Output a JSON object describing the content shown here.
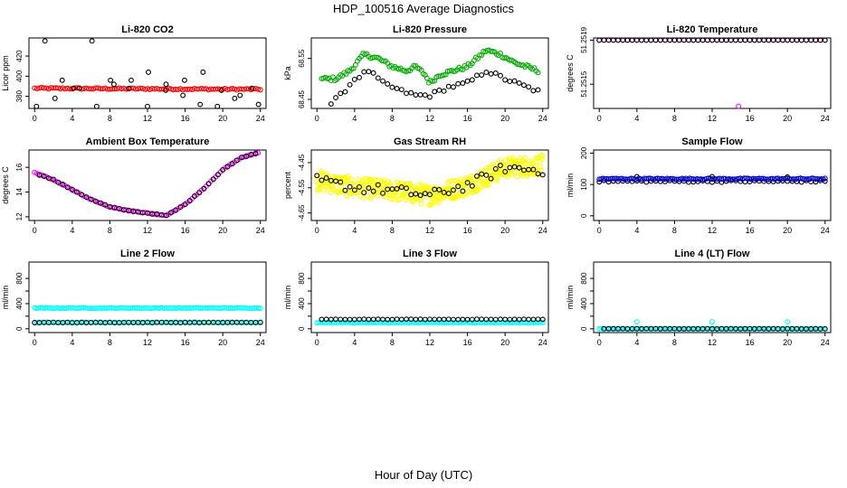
{
  "page": {
    "title": "HDP_100516  Average Diagnostics",
    "x_axis_label": "Hour of Day (UTC)"
  },
  "chart_data": [
    {
      "type": "scatter",
      "title": "Li-820 CO2",
      "ylabel": "Licor ppm",
      "ytick_labels": [
        "380",
        "400",
        "420"
      ],
      "yticks": [
        380,
        400,
        420
      ],
      "ylim": [
        368,
        438
      ],
      "xlim": [
        -0.6,
        24.6
      ],
      "xticks": [
        0,
        4,
        8,
        12,
        16,
        20,
        24
      ],
      "series": [
        {
          "color": "#ff0000",
          "pattern": "flat",
          "y0": 388,
          "y1": 387,
          "noise": 0.8,
          "start": 0,
          "end": 24,
          "step": 0.25
        },
        {
          "color": "#000000",
          "pattern": "scatter",
          "values": [
            370,
            378,
            388,
            435,
            396,
            388,
            370,
            392,
            396,
            404,
            386,
            381,
            372
          ]
        }
      ]
    },
    {
      "type": "scatter",
      "title": "Li-820 Pressure",
      "ylabel": "kPa",
      "ytick_labels": [
        "68.45",
        "68.55"
      ],
      "yticks": [
        68.45,
        68.55
      ],
      "ylim": [
        68.428,
        68.6
      ],
      "xlim": [
        -0.6,
        24.6
      ],
      "xticks": [
        0,
        4,
        8,
        12,
        16,
        20,
        24
      ],
      "series": [
        {
          "color": "#00aa00",
          "pattern": "curve",
          "points": [
            [
              0.5,
              68.5
            ],
            [
              2,
              68.5
            ],
            [
              3.5,
              68.52
            ],
            [
              5,
              68.56
            ],
            [
              6.5,
              68.55
            ],
            [
              8,
              68.53
            ],
            [
              9.5,
              68.52
            ],
            [
              10.5,
              68.53
            ],
            [
              11.5,
              68.51
            ],
            [
              12,
              68.49
            ],
            [
              13,
              68.51
            ],
            [
              14.5,
              68.52
            ],
            [
              16,
              68.53
            ],
            [
              18,
              68.57
            ],
            [
              19.5,
              68.56
            ],
            [
              21,
              68.54
            ],
            [
              23.5,
              68.52
            ]
          ],
          "noise": 0.005,
          "step": 0.2
        },
        {
          "color": "#000000",
          "pattern": "curve",
          "points": [
            [
              1,
              68.43
            ],
            [
              2.5,
              68.46
            ],
            [
              4,
              68.5
            ],
            [
              5.5,
              68.52
            ],
            [
              7,
              68.49
            ],
            [
              9,
              68.47
            ],
            [
              10.5,
              68.46
            ],
            [
              12,
              68.46
            ],
            [
              14,
              68.48
            ],
            [
              16,
              68.49
            ],
            [
              18,
              68.52
            ],
            [
              20,
              68.5
            ],
            [
              23.5,
              68.47
            ]
          ],
          "noise": 0.005,
          "step": 0.5
        }
      ]
    },
    {
      "type": "scatter",
      "title": "Li-820 Temperature",
      "ylabel": "degrees C",
      "ytick_labels": [
        "51.2515",
        "51.2519"
      ],
      "yticks": [
        51.2515,
        51.2519
      ],
      "ylim": [
        51.25128,
        51.25192
      ],
      "xlim": [
        -0.6,
        24.6
      ],
      "xticks": [
        0,
        4,
        8,
        12,
        16,
        20,
        24
      ],
      "series": [
        {
          "color": "#ff00ff",
          "pattern": "flat",
          "y0": 51.2519,
          "y1": 51.2519,
          "noise": 0,
          "start": 0,
          "end": 24,
          "step": 0.5
        },
        {
          "color": "#000000",
          "pattern": "flat",
          "y0": 51.2519,
          "y1": 51.2519,
          "noise": 0,
          "start": 0,
          "end": 24,
          "step": 0.5
        },
        {
          "color": "#ff00ff",
          "pattern": "scatter_xy",
          "points": [
            [
              14.8,
              51.2513
            ]
          ]
        }
      ]
    },
    {
      "type": "scatter",
      "title": "Ambient Box Temperature",
      "ylabel": "degrees C",
      "ytick_labels": [
        "12",
        "14",
        "16"
      ],
      "yticks": [
        12,
        14,
        16
      ],
      "ylim": [
        11.7,
        17.4
      ],
      "xlim": [
        -0.6,
        24.6
      ],
      "xticks": [
        0,
        4,
        8,
        12,
        16,
        20,
        24
      ],
      "series": [
        {
          "color": "#ff00ff",
          "pattern": "curve",
          "points": [
            [
              0,
              15.6
            ],
            [
              2,
              15.0
            ],
            [
              4,
              14.2
            ],
            [
              6,
              13.4
            ],
            [
              8,
              12.8
            ],
            [
              10,
              12.5
            ],
            [
              12,
              12.3
            ],
            [
              14,
              12.1
            ],
            [
              16,
              13.0
            ],
            [
              18,
              14.3
            ],
            [
              20,
              15.8
            ],
            [
              22,
              16.8
            ],
            [
              23.8,
              17.2
            ]
          ],
          "noise": 0.03,
          "step": 0.25
        },
        {
          "color": "#000000",
          "pattern": "curve",
          "points": [
            [
              0.5,
              15.4
            ],
            [
              2,
              15.0
            ],
            [
              4,
              14.2
            ],
            [
              6,
              13.4
            ],
            [
              8,
              12.8
            ],
            [
              10,
              12.5
            ],
            [
              12,
              12.3
            ],
            [
              14,
              12.1
            ],
            [
              16,
              13.0
            ],
            [
              18,
              14.3
            ],
            [
              20,
              15.8
            ],
            [
              22,
              16.8
            ],
            [
              23.8,
              17.2
            ]
          ],
          "noise": 0.03,
          "step": 0.5
        }
      ]
    },
    {
      "type": "scatter",
      "title": "Gas Stream RH",
      "ylabel": "percent",
      "ytick_labels": [
        "-4.65",
        "-4.55",
        "-4.45"
      ],
      "yticks": [
        -4.65,
        -4.55,
        -4.45
      ],
      "ylim": [
        -4.68,
        -4.4
      ],
      "xlim": [
        -0.6,
        24.6
      ],
      "xticks": [
        0,
        4,
        8,
        12,
        16,
        20,
        24
      ],
      "series": [
        {
          "color": "#ffff00",
          "pattern": "curve",
          "points": [
            [
              0,
              -4.52
            ],
            [
              4,
              -4.55
            ],
            [
              8,
              -4.56
            ],
            [
              12,
              -4.58
            ],
            [
              16,
              -4.54
            ],
            [
              20,
              -4.47
            ],
            [
              24,
              -4.46
            ]
          ],
          "noise": 0.04,
          "step": 0.06
        },
        {
          "color": "#000000",
          "pattern": "curve",
          "points": [
            [
              0,
              -4.52
            ],
            [
              4,
              -4.55
            ],
            [
              8,
              -4.56
            ],
            [
              12,
              -4.58
            ],
            [
              16,
              -4.54
            ],
            [
              20,
              -4.47
            ],
            [
              24,
              -4.48
            ]
          ],
          "noise": 0.02,
          "step": 0.5
        }
      ]
    },
    {
      "type": "scatter",
      "title": "Sample Flow",
      "ylabel": "ml/min",
      "ytick_labels": [
        "0",
        "100",
        "200"
      ],
      "yticks": [
        0,
        100,
        200
      ],
      "ylim": [
        -15,
        210
      ],
      "xlim": [
        -0.6,
        24.6
      ],
      "xticks": [
        0,
        4,
        8,
        12,
        16,
        20,
        24
      ],
      "series": [
        {
          "color": "#000000",
          "pattern": "flat",
          "y0": 110,
          "y1": 110,
          "noise": 3,
          "start": 0,
          "end": 24,
          "step": 0.5
        },
        {
          "color": "#0000cc",
          "pattern": "flat",
          "y0": 118,
          "y1": 118,
          "noise": 2,
          "start": 0,
          "end": 24,
          "step": 0.2
        },
        {
          "color": "#000000",
          "pattern": "scatter_xy",
          "points": [
            [
              4,
              125
            ],
            [
              12,
              125
            ],
            [
              20,
              124
            ]
          ]
        }
      ]
    },
    {
      "type": "scatter",
      "title": "Line 2 Flow",
      "ylabel": "ml/min",
      "ytick_labels": [
        "0",
        "400",
        "800"
      ],
      "yticks": [
        0,
        200,
        400,
        600,
        800
      ],
      "ylim": [
        -60,
        1060
      ],
      "xlim": [
        -0.6,
        24.6
      ],
      "xticks": [
        0,
        4,
        8,
        12,
        16,
        20,
        24
      ],
      "series": [
        {
          "color": "#00ffff",
          "pattern": "flat",
          "y0": 330,
          "y1": 330,
          "noise": 6,
          "start": 0,
          "end": 24,
          "step": 0.2
        },
        {
          "color": "#00ffff",
          "pattern": "flat",
          "y0": 100,
          "y1": 100,
          "noise": 4,
          "start": 0,
          "end": 24,
          "step": 0.25
        },
        {
          "color": "#000000",
          "pattern": "flat",
          "y0": 100,
          "y1": 100,
          "noise": 3,
          "start": 0,
          "end": 24,
          "step": 0.5
        }
      ]
    },
    {
      "type": "scatter",
      "title": "Line 3 Flow",
      "ylabel": "ml/min",
      "ytick_labels": [
        "0",
        "400",
        "800"
      ],
      "yticks": [
        0,
        200,
        400,
        600,
        800
      ],
      "ylim": [
        -60,
        1060
      ],
      "xlim": [
        -0.6,
        24.6
      ],
      "xticks": [
        0,
        4,
        8,
        12,
        16,
        20,
        24
      ],
      "series": [
        {
          "color": "#00ffff",
          "pattern": "flat",
          "y0": 100,
          "y1": 100,
          "noise": 4,
          "start": 0,
          "end": 24,
          "step": 0.2
        },
        {
          "color": "#000000",
          "pattern": "flat",
          "y0": 150,
          "y1": 150,
          "noise": 3,
          "start": 0.5,
          "end": 24,
          "step": 0.5
        }
      ]
    },
    {
      "type": "scatter",
      "title": "Line 4 (LT) Flow",
      "ylabel": "ml/min",
      "ytick_labels": [
        "0",
        "400",
        "800"
      ],
      "yticks": [
        0,
        200,
        400,
        600,
        800
      ],
      "ylim": [
        -60,
        1060
      ],
      "xlim": [
        -0.6,
        24.6
      ],
      "xticks": [
        0,
        4,
        8,
        12,
        16,
        20,
        24
      ],
      "series": [
        {
          "color": "#00ffff",
          "pattern": "flat",
          "y0": 0,
          "y1": 0,
          "noise": 2,
          "start": 0,
          "end": 24,
          "step": 0.2
        },
        {
          "color": "#000000",
          "pattern": "flat",
          "y0": 0,
          "y1": 0,
          "noise": 2,
          "start": 0.5,
          "end": 24,
          "step": 0.5
        },
        {
          "color": "#00ffff",
          "pattern": "scatter_xy",
          "points": [
            [
              4,
              110
            ],
            [
              12,
              110
            ],
            [
              20,
              110
            ]
          ]
        }
      ]
    }
  ]
}
